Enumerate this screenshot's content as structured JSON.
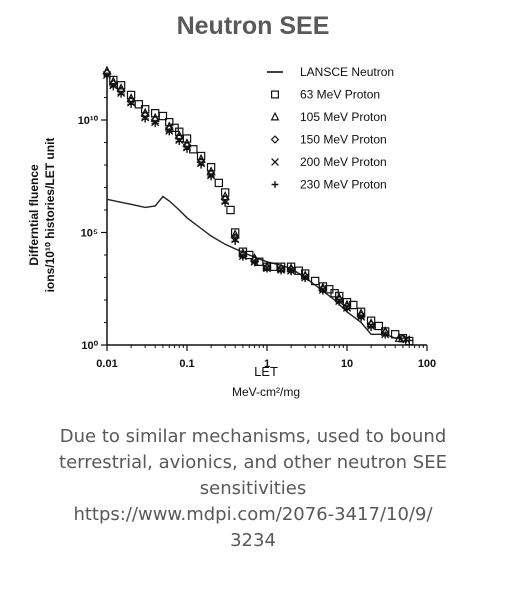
{
  "title": "Neutron SEE",
  "caption": {
    "text": "Due to similar mechanisms, used to bound terrestrial, avionics, and other neutron SEE sensitivities",
    "url": "https://www.mdpi.com/2076-3417/10/9/3234"
  },
  "chart_data": {
    "type": "scatter",
    "xlabel": "LET",
    "xunit": "MeV-cm²/mg",
    "ylabel_line1": "Differntial fluence",
    "ylabel_line2": "ions/10¹⁰ histories/LET unit",
    "xscale": "log",
    "yscale": "log",
    "xlim": [
      0.01,
      100
    ],
    "ylim": [
      1,
      1000000000000.0
    ],
    "x_ticks": [
      {
        "value": 0.01,
        "label": "0.01"
      },
      {
        "value": 0.1,
        "label": "0.1"
      },
      {
        "value": 1,
        "label": "1"
      },
      {
        "value": 10,
        "label": "10"
      },
      {
        "value": 100,
        "label": "100"
      }
    ],
    "y_ticks": [
      {
        "value": 1,
        "label": "10⁰"
      },
      {
        "value": 100000,
        "label": "10⁵"
      },
      {
        "value": 10000000000,
        "label": "10¹⁰"
      }
    ],
    "legend_position": "top-right",
    "series": [
      {
        "name": "LANSCE Neutron",
        "marker": "line",
        "x": [
          0.01,
          0.015,
          0.02,
          0.03,
          0.04,
          0.05,
          0.06,
          0.08,
          0.1,
          0.15,
          0.2,
          0.3,
          0.5,
          0.7,
          1,
          1.5,
          2,
          3,
          5,
          7,
          10,
          15,
          20,
          30,
          40,
          50,
          60
        ],
        "y": [
          3000000.0,
          2200000.0,
          1800000.0,
          1300000.0,
          1500000.0,
          4000000.0,
          2500000.0,
          1000000.0,
          450000.0,
          150000.0,
          70000.0,
          30000.0,
          13000.0,
          8000.0,
          5000.0,
          3500.0,
          2500.0,
          1000.0,
          250,
          100,
          30,
          10,
          3,
          3,
          2,
          2,
          2
        ]
      },
      {
        "name": "63 MeV Proton",
        "marker": "square",
        "x": [
          0.01,
          0.012,
          0.015,
          0.02,
          0.025,
          0.03,
          0.04,
          0.05,
          0.06,
          0.07,
          0.08,
          0.1,
          0.12,
          0.15,
          0.2,
          0.25,
          0.3,
          0.35,
          0.4,
          0.5,
          0.6,
          0.8,
          1,
          1.2,
          1.5,
          2,
          2.5,
          3,
          4,
          5,
          6,
          7,
          8,
          10,
          12,
          15,
          20,
          25,
          30,
          40,
          50,
          60
        ],
        "y": [
          2000000000000.0,
          600000000000.0,
          350000000000.0,
          130000000000.0,
          50000000000.0,
          30000000000.0,
          20000000000.0,
          15000000000.0,
          8000000000.0,
          4500000000.0,
          3000000000.0,
          1500000000.0,
          500000000.0,
          250000000.0,
          80000000.0,
          16000000.0,
          6000000.0,
          1000000.0,
          100000.0,
          14000.0,
          10000.0,
          5000.0,
          3000.0,
          3000.0,
          3000.0,
          3000.0,
          2000.0,
          1500.0,
          700,
          400,
          300,
          200,
          150,
          80,
          60,
          30,
          12,
          7,
          4,
          3,
          2,
          1.5
        ]
      },
      {
        "name": "105 MeV Proton",
        "marker": "triangle",
        "x": [
          0.01,
          0.012,
          0.015,
          0.02,
          0.03,
          0.04,
          0.06,
          0.08,
          0.1,
          0.15,
          0.2,
          0.3,
          0.4,
          0.5,
          0.7,
          1,
          1.5,
          2,
          3,
          5,
          8,
          10,
          15,
          20,
          30,
          45
        ],
        "y": [
          1500000000000.0,
          500000000000.0,
          250000000000.0,
          90000000000.0,
          20000000000.0,
          12000000000.0,
          5000000000.0,
          2000000000.0,
          900000000.0,
          180000000.0,
          50000000.0,
          4000000.0,
          80000.0,
          12000.0,
          7000.0,
          3000.0,
          2500.0,
          2500.0,
          1200.0,
          350,
          120,
          60,
          25,
          9,
          4,
          2
        ]
      },
      {
        "name": "150 MeV Proton",
        "marker": "diamond",
        "x": [
          0.01,
          0.012,
          0.015,
          0.02,
          0.03,
          0.04,
          0.06,
          0.08,
          0.1,
          0.15,
          0.2,
          0.3,
          0.4,
          0.5,
          0.7,
          1,
          1.5,
          2,
          3,
          5,
          8,
          10,
          15,
          20,
          30,
          50
        ],
        "y": [
          1200000000000.0,
          400000000000.0,
          200000000000.0,
          70000000000.0,
          16000000000.0,
          10000000000.0,
          4000000000.0,
          1600000000.0,
          700000000.0,
          140000000.0,
          40000000.0,
          3000000.0,
          60000.0,
          10000.0,
          6000.0,
          2800.0,
          2400.0,
          2200.0,
          1100.0,
          300,
          100,
          50,
          20,
          8,
          3.5,
          2
        ]
      },
      {
        "name": "200 MeV Proton",
        "marker": "x",
        "x": [
          0.01,
          0.012,
          0.015,
          0.02,
          0.03,
          0.04,
          0.06,
          0.08,
          0.1,
          0.15,
          0.2,
          0.3,
          0.4,
          0.5,
          0.7,
          1,
          1.5,
          2,
          3,
          5,
          8,
          10,
          15,
          20,
          30,
          55
        ],
        "y": [
          1000000000000.0,
          350000000000.0,
          160000000000.0,
          60000000000.0,
          13000000000.0,
          8000000000.0,
          3300000000.0,
          1300000000.0,
          600000000.0,
          120000000.0,
          35000000.0,
          2500000.0,
          50000.0,
          9000.0,
          5000.0,
          2600.0,
          2200.0,
          2000.0,
          1000.0,
          280,
          90,
          45,
          18,
          7,
          3,
          1.8
        ]
      },
      {
        "name": "230 MeV Proton",
        "marker": "plus",
        "x": [
          0.01,
          0.012,
          0.015,
          0.02,
          0.03,
          0.04,
          0.06,
          0.08,
          0.1,
          0.15,
          0.2,
          0.3,
          0.4,
          0.5,
          0.7,
          1,
          1.5,
          2,
          3,
          5,
          8,
          10,
          15,
          20,
          30,
          60
        ],
        "y": [
          900000000000.0,
          300000000000.0,
          140000000000.0,
          50000000000.0,
          11000000000.0,
          7000000000.0,
          3000000000.0,
          1100000000.0,
          500000000.0,
          100000000.0,
          30000000.0,
          2000000.0,
          40000.0,
          8000.0,
          4500.0,
          2400.0,
          2000.0,
          1800.0,
          900,
          250,
          80,
          40,
          16,
          6,
          2.8,
          1.6
        ]
      }
    ]
  }
}
